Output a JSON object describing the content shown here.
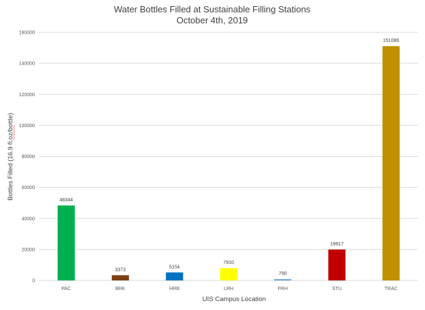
{
  "chart_data": {
    "type": "bar",
    "title": "Water Bottles Filled at Sustainable Filling Stations",
    "subtitle": "October 4th, 2019",
    "xlabel": "UIS Campus Location",
    "ylabel": "Bottles Filled (16.9 fl.oz/bottle)",
    "ylim": [
      0,
      160000
    ],
    "yticks": [
      0,
      20000,
      40000,
      60000,
      80000,
      100000,
      120000,
      140000,
      160000
    ],
    "grid": true,
    "legend": "none",
    "categories": [
      "PAC",
      "BRK",
      "HRB",
      "LRH",
      "FRH",
      "STU",
      "TRAC"
    ],
    "values": [
      48344,
      3373,
      5154,
      7910,
      790,
      19917,
      151086
    ],
    "colors": [
      "#00b050",
      "#7b3f13",
      "#0070c0",
      "#ffff00",
      "#5b9bd5",
      "#c00000",
      "#bf9000"
    ]
  }
}
